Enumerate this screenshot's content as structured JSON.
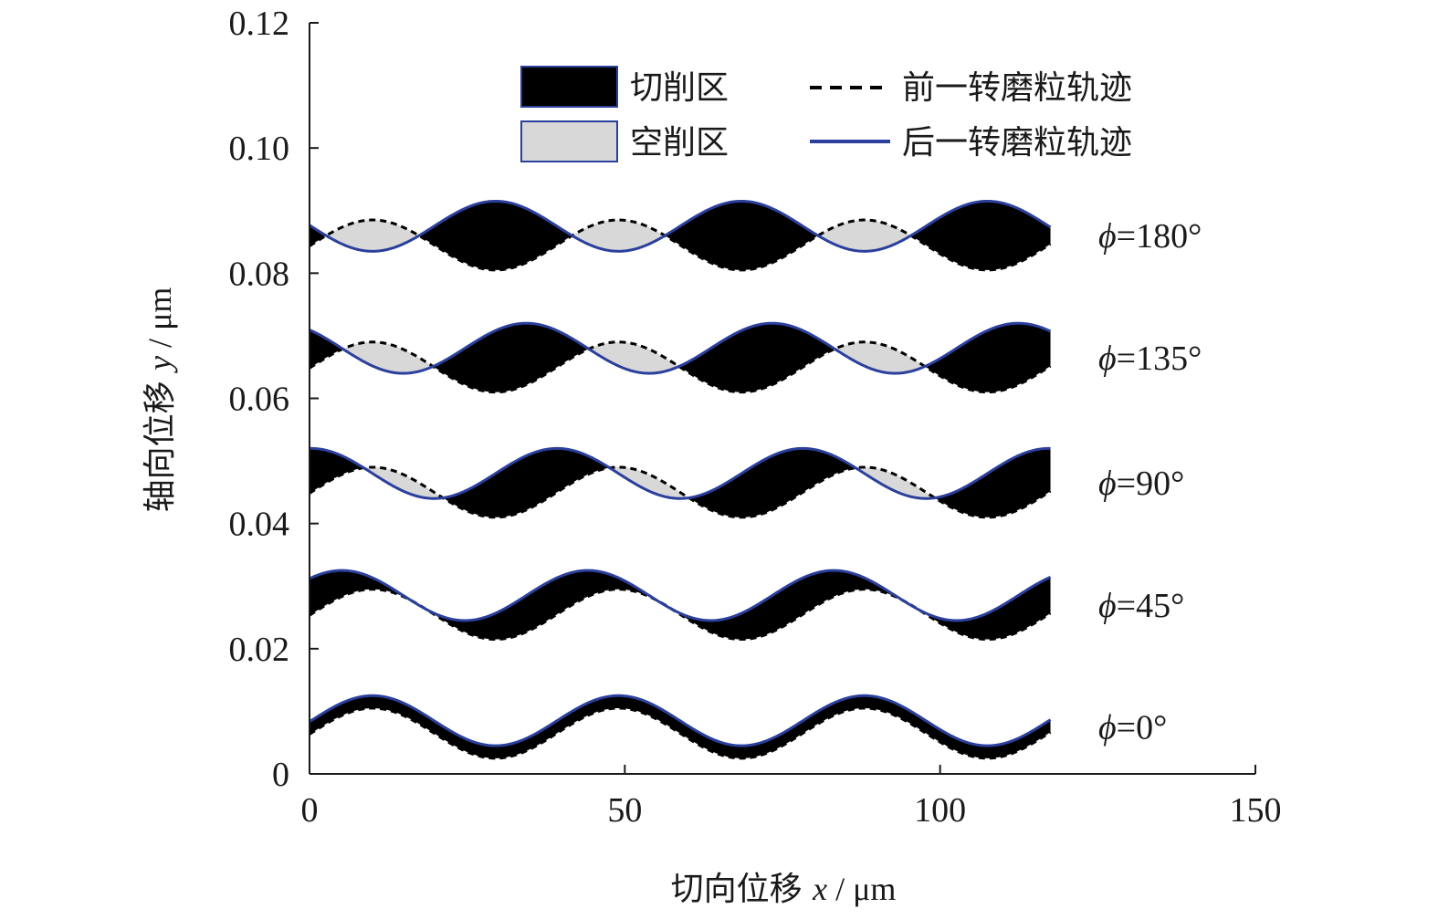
{
  "chart_data": {
    "type": "line",
    "xlabel": "切向位移 x / μm",
    "xlabel_parts": {
      "text": "切向位移 ",
      "var": "x",
      "unit": " / μm"
    },
    "ylabel": "轴向位移 y / μm",
    "ylabel_parts": {
      "text": "轴向位移 ",
      "var": "y",
      "unit": " / μm"
    },
    "xlim": [
      0,
      150
    ],
    "ylim": [
      0,
      0.12
    ],
    "x_ticks": [
      0,
      50,
      100,
      150
    ],
    "x_tick_labels": [
      "0",
      "50",
      "100",
      "150"
    ],
    "y_ticks": [
      0,
      0.02,
      0.04,
      0.06,
      0.08,
      0.1,
      0.12
    ],
    "y_tick_labels": [
      "0",
      "0.02",
      "0.04",
      "0.06",
      "0.08",
      "0.10",
      "0.12"
    ],
    "grid": false,
    "legend": {
      "placement": "top-center",
      "entries": [
        {
          "label": "切削区",
          "kind": "fill",
          "color": "#000000"
        },
        {
          "label": "空削区",
          "kind": "fill",
          "color": "#d8d8d8"
        },
        {
          "label": "前一转磨粒轨迹",
          "kind": "dashed-line",
          "color": "#000000"
        },
        {
          "label": "后一转磨粒轨迹",
          "kind": "line",
          "color": "#2b3f9c"
        }
      ]
    },
    "colors": {
      "cut_zone": "#000000",
      "idle_zone": "#d8d8d8",
      "previous_track": "#000000",
      "next_track": "#2b3f9c"
    },
    "wave": {
      "x_start": 0,
      "x_end": 117.5,
      "period": 39,
      "amplitude": 0.004,
      "prev_peak_x": 10
    },
    "curves": [
      {
        "phi_label_sym": "ϕ",
        "phi_label_val": "=0°",
        "phase_deg": 0,
        "prev_center": 0.0065,
        "next_center": 0.0085
      },
      {
        "phi_label_sym": "ϕ",
        "phi_label_val": "=45°",
        "phase_deg": 45,
        "prev_center": 0.0255,
        "next_center": 0.0285
      },
      {
        "phi_label_sym": "ϕ",
        "phi_label_val": "=90°",
        "phase_deg": 90,
        "prev_center": 0.045,
        "next_center": 0.048
      },
      {
        "phi_label_sym": "ϕ",
        "phi_label_val": "=135°",
        "phase_deg": 135,
        "prev_center": 0.065,
        "next_center": 0.068
      },
      {
        "phi_label_sym": "ϕ",
        "phi_label_val": "=180°",
        "phase_deg": 180,
        "prev_center": 0.0845,
        "next_center": 0.0875
      }
    ]
  }
}
